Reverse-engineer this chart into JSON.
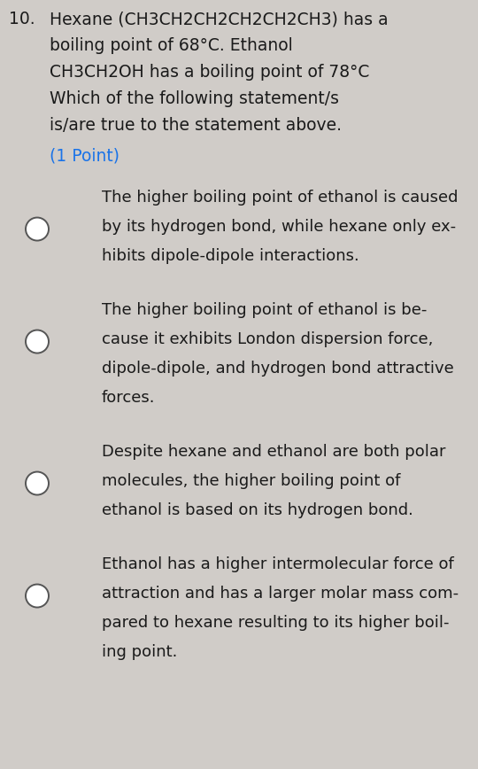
{
  "bg_color": "#d0ccc8",
  "question_number": "10.",
  "question_text_lines": [
    "Hexane (CH3CH2CH2CH2CH2CH3) has a",
    "boiling point of 68°C. Ethanol",
    "CH3CH2OH has a boiling point of 78°C",
    "Which of the following statement/s",
    "is/are true to the statement above."
  ],
  "point_text": "(1 Point)",
  "point_color": "#1a73e8",
  "options": [
    {
      "lines": [
        "The higher boiling point of ethanol is caused",
        "by its hydrogen bond, while hexane only ex-",
        "hibits dipole-dipole interactions."
      ],
      "circle_line": 1
    },
    {
      "lines": [
        "The higher boiling point of ethanol is be-",
        "cause it exhibits London dispersion force,",
        "dipole-dipole, and hydrogen bond attractive",
        "forces."
      ],
      "circle_line": 1
    },
    {
      "lines": [
        "Despite hexane and ethanol are both polar",
        "molecules, the higher boiling point of",
        "ethanol is based on its hydrogen bond."
      ],
      "circle_line": 1
    },
    {
      "lines": [
        "Ethanol has a higher intermolecular force of",
        "attraction and has a larger molar mass com-",
        "pared to hexane resulting to its higher boil-",
        "ing point."
      ],
      "circle_line": 1
    }
  ],
  "text_color": "#1a1a1a",
  "font_size_question": 13.5,
  "font_size_options": 13.0,
  "circle_edge_color": "#555555",
  "circle_face_color": "#ffffff",
  "circle_linewidth": 1.4
}
